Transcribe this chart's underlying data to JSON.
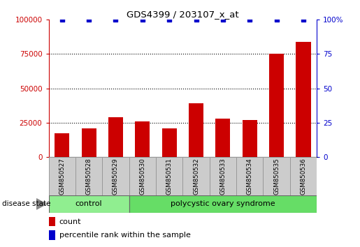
{
  "title": "GDS4399 / 203107_x_at",
  "samples": [
    "GSM850527",
    "GSM850528",
    "GSM850529",
    "GSM850530",
    "GSM850531",
    "GSM850532",
    "GSM850533",
    "GSM850534",
    "GSM850535",
    "GSM850536"
  ],
  "counts": [
    17000,
    21000,
    29000,
    26000,
    21000,
    39000,
    28000,
    27000,
    75000,
    84000
  ],
  "percentiles": [
    100,
    100,
    100,
    100,
    100,
    100,
    100,
    100,
    100,
    100
  ],
  "bar_color": "#cc0000",
  "dot_color": "#0000cc",
  "ylim_left": [
    0,
    100000
  ],
  "ylim_right": [
    0,
    100
  ],
  "yticks_left": [
    0,
    25000,
    50000,
    75000,
    100000
  ],
  "ytick_labels_left": [
    "0",
    "25000",
    "50000",
    "75000",
    "100000"
  ],
  "yticks_right": [
    0,
    25,
    50,
    75,
    100
  ],
  "ytick_labels_right": [
    "0",
    "25",
    "50",
    "75",
    "100%"
  ],
  "groups": [
    {
      "label": "control",
      "indices": [
        0,
        1,
        2
      ],
      "color": "#90ee90"
    },
    {
      "label": "polycystic ovary syndrome",
      "indices": [
        3,
        4,
        5,
        6,
        7,
        8,
        9
      ],
      "color": "#66dd66"
    }
  ],
  "disease_state_label": "disease state",
  "legend_count_label": "count",
  "legend_percentile_label": "percentile rank within the sample",
  "grid_color": "#000000",
  "tick_area_color": "#cccccc",
  "bar_width": 0.55,
  "dot_size": 20
}
